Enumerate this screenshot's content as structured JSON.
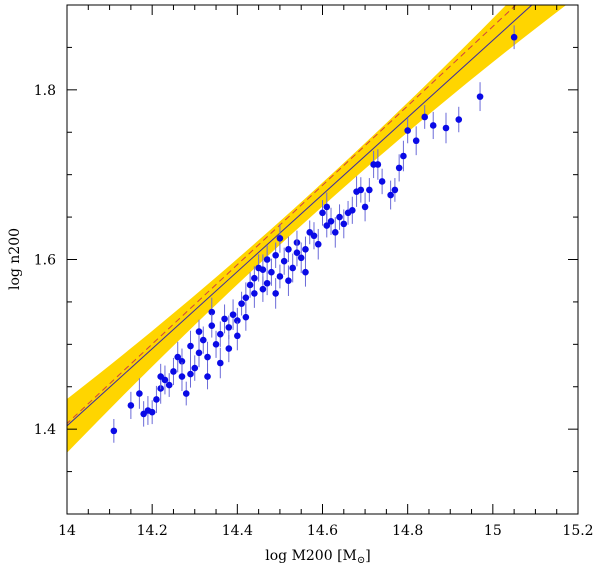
{
  "chart_data": {
    "type": "scatter",
    "title": "",
    "xlabel": "log M200 [M",
    "xlabel_sub": "⊙",
    "xlabel_close": "]",
    "ylabel": "log n200",
    "xlim": [
      14.0,
      15.2
    ],
    "ylim": [
      1.3,
      1.9
    ],
    "xticks": [
      14,
      14.2,
      14.4,
      14.6,
      14.8,
      15,
      15.2
    ],
    "xtick_labels": [
      "14",
      "14.2",
      "14.4",
      "14.6",
      "14.8",
      "15",
      "15.2"
    ],
    "yticks": [
      1.4,
      1.6,
      1.8
    ],
    "ytick_labels": [
      "1.4",
      "1.6",
      "1.8"
    ],
    "grid": false,
    "colors": {
      "points": "#0a0ae6",
      "errorbars": "#6a6ad8",
      "band": "#ffd500",
      "fit_line": "#3a2aa0",
      "dashed_line": "#d04040"
    },
    "fit": {
      "slope": 0.4545,
      "intercept": -4.9591,
      "band_halfwidth_at_ends": [
        0.013,
        0.025
      ],
      "band_center_x": 14.55
    },
    "reference_line": {
      "slope": 0.468,
      "intercept": -5.1453,
      "style": "dashed"
    },
    "series": [
      {
        "points": [
          [
            14.11,
            1.398
          ],
          [
            14.15,
            1.428
          ],
          [
            14.17,
            1.442
          ],
          [
            14.18,
            1.418
          ],
          [
            14.19,
            1.422
          ],
          [
            14.2,
            1.42
          ],
          [
            14.21,
            1.435
          ],
          [
            14.22,
            1.448
          ],
          [
            14.22,
            1.462
          ],
          [
            14.23,
            1.458
          ],
          [
            14.24,
            1.452
          ],
          [
            14.25,
            1.468
          ],
          [
            14.26,
            1.485
          ],
          [
            14.27,
            1.48
          ],
          [
            14.27,
            1.462
          ],
          [
            14.28,
            1.442
          ],
          [
            14.29,
            1.465
          ],
          [
            14.29,
            1.498
          ],
          [
            14.3,
            1.472
          ],
          [
            14.31,
            1.49
          ],
          [
            14.31,
            1.515
          ],
          [
            14.32,
            1.505
          ],
          [
            14.33,
            1.485
          ],
          [
            14.33,
            1.462
          ],
          [
            14.34,
            1.538
          ],
          [
            14.34,
            1.522
          ],
          [
            14.35,
            1.5
          ],
          [
            14.36,
            1.478
          ],
          [
            14.36,
            1.512
          ],
          [
            14.37,
            1.53
          ],
          [
            14.38,
            1.52
          ],
          [
            14.38,
            1.495
          ],
          [
            14.39,
            1.535
          ],
          [
            14.4,
            1.528
          ],
          [
            14.4,
            1.51
          ],
          [
            14.41,
            1.548
          ],
          [
            14.42,
            1.532
          ],
          [
            14.42,
            1.555
          ],
          [
            14.43,
            1.57
          ],
          [
            14.44,
            1.56
          ],
          [
            14.44,
            1.578
          ],
          [
            14.45,
            1.59
          ],
          [
            14.46,
            1.588
          ],
          [
            14.46,
            1.565
          ],
          [
            14.47,
            1.6
          ],
          [
            14.47,
            1.572
          ],
          [
            14.48,
            1.585
          ],
          [
            14.49,
            1.56
          ],
          [
            14.49,
            1.605
          ],
          [
            14.5,
            1.625
          ],
          [
            14.5,
            1.58
          ],
          [
            14.51,
            1.598
          ],
          [
            14.52,
            1.575
          ],
          [
            14.52,
            1.612
          ],
          [
            14.53,
            1.59
          ],
          [
            14.54,
            1.62
          ],
          [
            14.54,
            1.608
          ],
          [
            14.55,
            1.602
          ],
          [
            14.56,
            1.612
          ],
          [
            14.56,
            1.585
          ],
          [
            14.57,
            1.632
          ],
          [
            14.58,
            1.628
          ],
          [
            14.59,
            1.618
          ],
          [
            14.6,
            1.655
          ],
          [
            14.61,
            1.662
          ],
          [
            14.61,
            1.64
          ],
          [
            14.62,
            1.645
          ],
          [
            14.63,
            1.632
          ],
          [
            14.64,
            1.65
          ],
          [
            14.65,
            1.642
          ],
          [
            14.66,
            1.655
          ],
          [
            14.67,
            1.658
          ],
          [
            14.68,
            1.68
          ],
          [
            14.69,
            1.682
          ],
          [
            14.7,
            1.662
          ],
          [
            14.71,
            1.682
          ],
          [
            14.72,
            1.712
          ],
          [
            14.73,
            1.712
          ],
          [
            14.74,
            1.692
          ],
          [
            14.76,
            1.676
          ],
          [
            14.77,
            1.682
          ],
          [
            14.78,
            1.708
          ],
          [
            14.79,
            1.722
          ],
          [
            14.8,
            1.752
          ],
          [
            14.82,
            1.74
          ],
          [
            14.84,
            1.768
          ],
          [
            14.86,
            1.758
          ],
          [
            14.89,
            1.755
          ],
          [
            14.92,
            1.765
          ],
          [
            14.97,
            1.792
          ],
          [
            15.05,
            1.862
          ]
        ]
      }
    ]
  }
}
